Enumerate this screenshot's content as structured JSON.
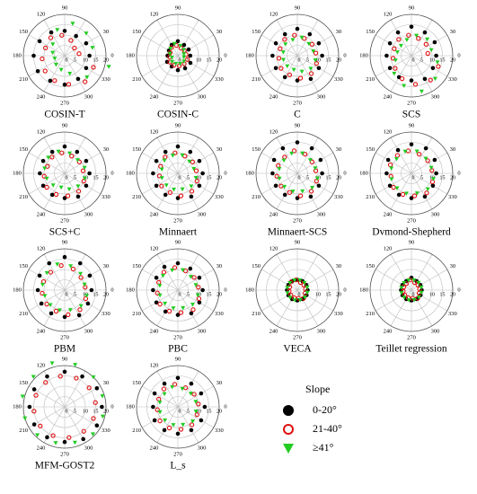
{
  "chart_data": {
    "type": "scatter",
    "coordinate_system": "polar",
    "angle_tick_labels": [
      "0",
      "30",
      "90",
      "120",
      "150",
      "180",
      "210",
      "240",
      "270",
      "300",
      "330"
    ],
    "radius_tick_labels": [
      "0",
      "5",
      "10",
      "15",
      "20"
    ],
    "radius_range": [
      0,
      20
    ],
    "grid": true,
    "legend": {
      "title": "Slope",
      "placement": "bottom-right",
      "entries": [
        "0-20°",
        "21-40°",
        "≥41°"
      ]
    },
    "series_styles": [
      {
        "marker": "filled-circle",
        "color": "#000000"
      },
      {
        "marker": "open-circle",
        "color": "#e01010"
      },
      {
        "marker": "triangle-down",
        "color": "#22cc22"
      }
    ],
    "panels": [
      {
        "label": "COSIN-T",
        "radii": [
          [
            12,
            12,
            11,
            12,
            13,
            14,
            15,
            15,
            14,
            14,
            13,
            12
          ],
          [
            7,
            6,
            8,
            10,
            11,
            10,
            11,
            12,
            13,
            14,
            16,
            15
          ],
          [
            14,
            15,
            16,
            13,
            8,
            6,
            5,
            6,
            7,
            9,
            15,
            22
          ]
        ]
      },
      {
        "label": "COSIN-C",
        "radii": [
          [
            6,
            6,
            6,
            7,
            6,
            5,
            5,
            6,
            6,
            7,
            7,
            7
          ],
          [
            4,
            4,
            4,
            5,
            5,
            4,
            4,
            5,
            5,
            5,
            5,
            5
          ],
          [
            3,
            4,
            5,
            6,
            5,
            4,
            3,
            4,
            4,
            4,
            4,
            3
          ]
        ]
      },
      {
        "label": "C",
        "radii": [
          [
            12,
            12,
            12,
            13,
            12,
            12,
            12,
            12,
            12,
            12,
            13,
            12
          ],
          [
            9,
            9,
            9,
            10,
            10,
            9,
            9,
            10,
            10,
            11,
            11,
            10
          ],
          [
            8,
            8,
            9,
            8,
            8,
            7,
            7,
            7,
            7,
            8,
            9,
            9
          ]
        ]
      },
      {
        "label": "SCS",
        "radii": [
          [
            12,
            13,
            13,
            14,
            13,
            12,
            12,
            12,
            12,
            12,
            13,
            12
          ],
          [
            8,
            9,
            9,
            10,
            10,
            9,
            9,
            10,
            12,
            14,
            15,
            14
          ],
          [
            10,
            11,
            10,
            8,
            7,
            7,
            8,
            12,
            15,
            18,
            16,
            13
          ]
        ]
      },
      {
        "label": "SCS+C",
        "radii": [
          [
            12,
            12,
            12,
            13,
            12,
            12,
            12,
            12,
            12,
            12,
            13,
            12
          ],
          [
            9,
            9,
            9,
            10,
            10,
            9,
            10,
            11,
            11,
            11,
            11,
            10
          ],
          [
            10,
            9,
            10,
            11,
            11,
            10,
            9,
            8,
            7,
            8,
            9,
            10
          ]
        ]
      },
      {
        "label": "Minnaert",
        "radii": [
          [
            12,
            12,
            12,
            13,
            12,
            12,
            12,
            12,
            12,
            12,
            13,
            12
          ],
          [
            9,
            9,
            9,
            10,
            10,
            9,
            9,
            10,
            10,
            11,
            11,
            10
          ],
          [
            8,
            8,
            9,
            9,
            9,
            8,
            8,
            8,
            8,
            8,
            9,
            9
          ]
        ]
      },
      {
        "label": "Minnaert-SCS",
        "radii": [
          [
            12,
            13,
            14,
            15,
            14,
            13,
            12,
            12,
            12,
            12,
            13,
            12
          ],
          [
            9,
            9,
            10,
            11,
            10,
            10,
            10,
            10,
            10,
            11,
            11,
            10
          ],
          [
            9,
            9,
            10,
            10,
            9,
            9,
            9,
            9,
            9,
            9,
            10,
            10
          ]
        ]
      },
      {
        "label": "Dvmond-Shepherd",
        "radii": [
          [
            12,
            13,
            14,
            14,
            13,
            13,
            12,
            12,
            12,
            12,
            13,
            12
          ],
          [
            10,
            10,
            10,
            11,
            11,
            11,
            10,
            11,
            11,
            11,
            12,
            11
          ],
          [
            10,
            10,
            11,
            11,
            10,
            10,
            10,
            10,
            10,
            10,
            11,
            11
          ]
        ]
      },
      {
        "label": "PBM",
        "radii": [
          [
            13,
            14,
            15,
            16,
            15,
            14,
            13,
            13,
            13,
            13,
            14,
            13
          ],
          [
            10,
            10,
            11,
            12,
            11,
            11,
            11,
            11,
            11,
            12,
            12,
            11
          ],
          [
            10,
            11,
            12,
            13,
            12,
            11,
            10,
            10,
            10,
            10,
            11,
            11
          ]
        ]
      },
      {
        "label": "PBC",
        "radii": [
          [
            12,
            12,
            12,
            13,
            13,
            12,
            12,
            12,
            12,
            12,
            13,
            12
          ],
          [
            10,
            10,
            10,
            11,
            11,
            10,
            10,
            11,
            11,
            11,
            12,
            11
          ],
          [
            9,
            9,
            10,
            10,
            10,
            9,
            9,
            9,
            9,
            9,
            10,
            10
          ]
        ]
      },
      {
        "label": "VECA",
        "radii": [
          [
            5,
            5,
            5,
            5,
            5,
            5,
            5,
            5,
            5,
            5,
            5,
            5
          ],
          [
            4,
            4,
            4,
            5,
            5,
            4,
            4,
            4,
            4,
            4,
            5,
            4
          ],
          [
            5,
            5,
            5,
            5,
            5,
            5,
            5,
            5,
            5,
            5,
            5,
            5
          ]
        ]
      },
      {
        "label": "Teillet regression",
        "radii": [
          [
            5,
            5,
            5,
            6,
            5,
            5,
            5,
            5,
            5,
            5,
            5,
            5
          ],
          [
            4,
            4,
            4,
            5,
            4,
            4,
            4,
            4,
            4,
            4,
            5,
            4
          ],
          [
            5,
            5,
            5,
            5,
            5,
            5,
            5,
            5,
            5,
            5,
            5,
            5
          ]
        ]
      },
      {
        "label": "MFM-GOST2",
        "radii": [
          [
            18,
            18,
            17,
            17,
            17,
            17,
            17,
            17,
            17,
            17,
            18,
            18
          ],
          [
            15,
            15,
            15,
            15,
            15,
            15,
            15,
            15,
            15,
            15,
            15,
            15
          ],
          [
            19,
            20,
            21,
            22,
            21,
            21,
            20,
            19,
            18,
            18,
            19,
            19
          ]
        ]
      },
      {
        "label": "L_s",
        "radii": [
          [
            13,
            13,
            13,
            14,
            13,
            13,
            12,
            13,
            13,
            13,
            13,
            13
          ],
          [
            10,
            10,
            10,
            11,
            11,
            10,
            10,
            11,
            11,
            11,
            11,
            10
          ],
          [
            9,
            9,
            9,
            10,
            9,
            9,
            9,
            9,
            9,
            9,
            10,
            9
          ]
        ]
      }
    ]
  }
}
